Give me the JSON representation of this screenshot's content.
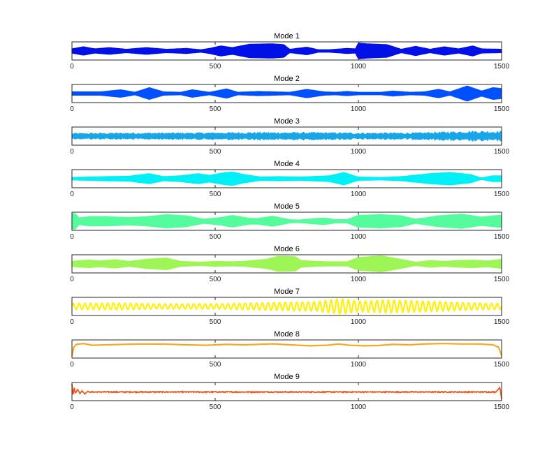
{
  "chart_data": [
    {
      "type": "line",
      "title": "Mode 1",
      "color": "#0010E6",
      "xlim": [
        0,
        1500
      ],
      "xticks": [
        "0",
        "500",
        "1000",
        "1500"
      ],
      "signal": "modulated-oscillation",
      "envelope": [
        [
          0,
          0.25
        ],
        [
          40,
          0.5
        ],
        [
          80,
          0.25
        ],
        [
          130,
          0.4
        ],
        [
          190,
          0.2
        ],
        [
          260,
          0.4
        ],
        [
          330,
          0.2
        ],
        [
          400,
          0.3
        ],
        [
          450,
          0.15
        ],
        [
          480,
          0.3
        ],
        [
          520,
          0.6
        ],
        [
          560,
          0.4
        ],
        [
          620,
          0.8
        ],
        [
          700,
          0.85
        ],
        [
          740,
          0.75
        ],
        [
          760,
          0.2
        ],
        [
          820,
          0.45
        ],
        [
          860,
          0.15
        ],
        [
          900,
          0.15
        ],
        [
          960,
          0.3
        ],
        [
          990,
          0.25
        ],
        [
          1000,
          0.95
        ],
        [
          1030,
          0.85
        ],
        [
          1100,
          0.75
        ],
        [
          1150,
          0.2
        ],
        [
          1200,
          0.55
        ],
        [
          1250,
          0.2
        ],
        [
          1300,
          0.5
        ],
        [
          1350,
          0.25
        ],
        [
          1400,
          0.6
        ],
        [
          1430,
          0.25
        ],
        [
          1500,
          0.2
        ]
      ]
    },
    {
      "type": "line",
      "title": "Mode 2",
      "color": "#0050FF",
      "xlim": [
        0,
        1500
      ],
      "xticks": [
        "0",
        "500",
        "1000",
        "1500"
      ],
      "signal": "modulated-oscillation",
      "envelope": [
        [
          0,
          0.2
        ],
        [
          100,
          0.2
        ],
        [
          170,
          0.45
        ],
        [
          220,
          0.15
        ],
        [
          270,
          0.7
        ],
        [
          320,
          0.2
        ],
        [
          380,
          0.15
        ],
        [
          420,
          0.45
        ],
        [
          480,
          0.15
        ],
        [
          540,
          0.55
        ],
        [
          580,
          0.15
        ],
        [
          650,
          0.25
        ],
        [
          760,
          0.15
        ],
        [
          820,
          0.5
        ],
        [
          880,
          0.2
        ],
        [
          920,
          0.15
        ],
        [
          960,
          0.25
        ],
        [
          1000,
          0.15
        ],
        [
          1080,
          0.15
        ],
        [
          1120,
          0.3
        ],
        [
          1180,
          0.15
        ],
        [
          1230,
          0.2
        ],
        [
          1280,
          0.5
        ],
        [
          1320,
          0.2
        ],
        [
          1380,
          0.9
        ],
        [
          1430,
          0.3
        ],
        [
          1470,
          0.7
        ],
        [
          1500,
          0.6
        ]
      ]
    },
    {
      "type": "line",
      "title": "Mode 3",
      "color": "#19A6E8",
      "xlim": [
        0,
        1500
      ],
      "xticks": [
        "0",
        "500",
        "1000",
        "1500"
      ],
      "signal": "noisy-oscillation",
      "envelope": [
        [
          0,
          0.3
        ],
        [
          200,
          0.35
        ],
        [
          400,
          0.35
        ],
        [
          600,
          0.4
        ],
        [
          800,
          0.4
        ],
        [
          1000,
          0.35
        ],
        [
          1200,
          0.35
        ],
        [
          1300,
          0.45
        ],
        [
          1400,
          0.55
        ],
        [
          1500,
          0.5
        ]
      ]
    },
    {
      "type": "line",
      "title": "Mode 4",
      "color": "#00F0F5",
      "xlim": [
        0,
        1500
      ],
      "xticks": [
        "0",
        "500",
        "1000",
        "1500"
      ],
      "signal": "modulated-oscillation",
      "envelope": [
        [
          0,
          0.15
        ],
        [
          60,
          0.2
        ],
        [
          120,
          0.25
        ],
        [
          200,
          0.3
        ],
        [
          270,
          0.6
        ],
        [
          320,
          0.25
        ],
        [
          380,
          0.35
        ],
        [
          440,
          0.6
        ],
        [
          480,
          0.4
        ],
        [
          530,
          0.7
        ],
        [
          560,
          0.8
        ],
        [
          600,
          0.5
        ],
        [
          660,
          0.2
        ],
        [
          720,
          0.25
        ],
        [
          800,
          0.2
        ],
        [
          900,
          0.35
        ],
        [
          950,
          0.75
        ],
        [
          980,
          0.4
        ],
        [
          1000,
          0.2
        ],
        [
          1080,
          0.15
        ],
        [
          1150,
          0.25
        ],
        [
          1250,
          0.6
        ],
        [
          1320,
          0.75
        ],
        [
          1390,
          0.5
        ],
        [
          1430,
          0.1
        ],
        [
          1470,
          0.35
        ],
        [
          1500,
          0.35
        ]
      ]
    },
    {
      "type": "line",
      "title": "Mode 5",
      "color": "#55FC9E",
      "xlim": [
        0,
        1500
      ],
      "xticks": [
        "0",
        "500",
        "1000",
        "1500"
      ],
      "signal": "modulated-oscillation",
      "envelope": [
        [
          0,
          0.9
        ],
        [
          10,
          0.95
        ],
        [
          25,
          0.4
        ],
        [
          60,
          0.55
        ],
        [
          120,
          0.55
        ],
        [
          200,
          0.45
        ],
        [
          260,
          0.55
        ],
        [
          330,
          0.8
        ],
        [
          400,
          0.65
        ],
        [
          460,
          0.25
        ],
        [
          520,
          0.45
        ],
        [
          560,
          0.7
        ],
        [
          620,
          0.35
        ],
        [
          650,
          0.35
        ],
        [
          700,
          0.6
        ],
        [
          760,
          0.2
        ],
        [
          790,
          0.15
        ],
        [
          840,
          0.3
        ],
        [
          880,
          0.4
        ],
        [
          920,
          0.2
        ],
        [
          960,
          0.2
        ],
        [
          1000,
          0.7
        ],
        [
          1080,
          0.8
        ],
        [
          1150,
          0.65
        ],
        [
          1200,
          0.25
        ],
        [
          1280,
          0.65
        ],
        [
          1360,
          0.85
        ],
        [
          1430,
          0.5
        ],
        [
          1500,
          0.75
        ]
      ]
    },
    {
      "type": "line",
      "title": "Mode 6",
      "color": "#9EF556",
      "xlim": [
        0,
        1500
      ],
      "xticks": [
        "0",
        "500",
        "1000",
        "1500"
      ],
      "signal": "modulated-oscillation",
      "envelope": [
        [
          0,
          0.3
        ],
        [
          30,
          0.4
        ],
        [
          60,
          0.45
        ],
        [
          100,
          0.35
        ],
        [
          150,
          0.5
        ],
        [
          200,
          0.3
        ],
        [
          260,
          0.55
        ],
        [
          330,
          0.7
        ],
        [
          380,
          0.3
        ],
        [
          450,
          0.2
        ],
        [
          500,
          0.3
        ],
        [
          560,
          0.25
        ],
        [
          600,
          0.3
        ],
        [
          680,
          0.55
        ],
        [
          720,
          0.9
        ],
        [
          780,
          0.85
        ],
        [
          800,
          0.4
        ],
        [
          850,
          0.3
        ],
        [
          900,
          0.25
        ],
        [
          960,
          0.25
        ],
        [
          1000,
          0.75
        ],
        [
          1080,
          0.95
        ],
        [
          1140,
          0.6
        ],
        [
          1200,
          0.2
        ],
        [
          1250,
          0.4
        ],
        [
          1300,
          0.3
        ],
        [
          1350,
          0.4
        ],
        [
          1400,
          0.45
        ],
        [
          1450,
          0.35
        ],
        [
          1500,
          0.55
        ]
      ]
    },
    {
      "type": "line",
      "title": "Mode 7",
      "color": "#FFF00A",
      "xlim": [
        0,
        1500
      ],
      "xticks": [
        "0",
        "500",
        "1000",
        "1500"
      ],
      "signal": "sinusoid",
      "envelope": [
        [
          0,
          0.35
        ],
        [
          150,
          0.4
        ],
        [
          300,
          0.3
        ],
        [
          500,
          0.3
        ],
        [
          700,
          0.45
        ],
        [
          850,
          0.55
        ],
        [
          940,
          0.9
        ],
        [
          1000,
          0.6
        ],
        [
          1100,
          0.75
        ],
        [
          1200,
          0.65
        ],
        [
          1300,
          0.55
        ],
        [
          1400,
          0.4
        ],
        [
          1500,
          0.35
        ]
      ]
    },
    {
      "type": "line",
      "title": "Mode 8",
      "color": "#F5A91C",
      "xlim": [
        0,
        1500
      ],
      "xticks": [
        "0",
        "500",
        "1000",
        "1500"
      ],
      "signal": "trend",
      "points": [
        [
          0,
          -0.8
        ],
        [
          6,
          0.2
        ],
        [
          15,
          0.55
        ],
        [
          40,
          0.65
        ],
        [
          70,
          0.45
        ],
        [
          120,
          0.5
        ],
        [
          180,
          0.55
        ],
        [
          240,
          0.6
        ],
        [
          320,
          0.58
        ],
        [
          400,
          0.5
        ],
        [
          470,
          0.45
        ],
        [
          540,
          0.55
        ],
        [
          600,
          0.5
        ],
        [
          650,
          0.55
        ],
        [
          700,
          0.62
        ],
        [
          760,
          0.5
        ],
        [
          830,
          0.38
        ],
        [
          890,
          0.45
        ],
        [
          930,
          0.6
        ],
        [
          970,
          0.45
        ],
        [
          1020,
          0.38
        ],
        [
          1070,
          0.42
        ],
        [
          1120,
          0.55
        ],
        [
          1180,
          0.5
        ],
        [
          1240,
          0.62
        ],
        [
          1300,
          0.65
        ],
        [
          1360,
          0.6
        ],
        [
          1420,
          0.6
        ],
        [
          1470,
          0.5
        ],
        [
          1490,
          0.2
        ],
        [
          1500,
          -0.8
        ]
      ]
    },
    {
      "type": "line",
      "title": "Mode 9",
      "color": "#EB5A1F",
      "xlim": [
        0,
        1500
      ],
      "xticks": [
        "0",
        "500",
        "1000",
        "1500"
      ],
      "signal": "noisy-baseline",
      "points": [
        [
          0,
          0.9
        ],
        [
          4,
          -0.5
        ],
        [
          8,
          0.5
        ],
        [
          12,
          -0.2
        ],
        [
          20,
          0.25
        ],
        [
          28,
          -0.25
        ],
        [
          35,
          0.1
        ],
        [
          45,
          -0.3
        ],
        [
          55,
          0.05
        ],
        [
          60,
          -0.05
        ],
        [
          1480,
          -0.05
        ],
        [
          1488,
          0.25
        ],
        [
          1494,
          0.5
        ],
        [
          1500,
          -0.9
        ]
      ]
    }
  ]
}
